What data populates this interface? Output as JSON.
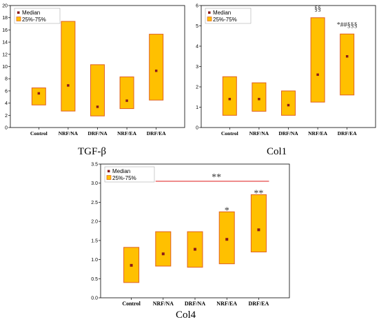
{
  "legend": {
    "median": "Median",
    "range": "25%-75%"
  },
  "colors": {
    "box_fill": "#ffc000",
    "box_stroke": "#e06020",
    "median": "#8b1a1a",
    "line": "#e03030"
  },
  "chart_data": [
    {
      "type": "box",
      "title": "TGF-β",
      "categories": [
        "Control",
        "NRF/NA",
        "DRF/NA",
        "NRF/EA",
        "DRF/EA"
      ],
      "ylim": [
        0,
        20
      ],
      "yticks": [
        0,
        2,
        4,
        6,
        8,
        10,
        12,
        14,
        16,
        18,
        20
      ],
      "legend_position": "top-left",
      "series": [
        {
          "name": "Median",
          "values": [
            5.6,
            6.9,
            3.4,
            4.4,
            9.3
          ]
        },
        {
          "name": "25%-75%",
          "q1": [
            3.7,
            2.7,
            1.9,
            3.1,
            4.5
          ],
          "q3": [
            6.5,
            17.4,
            10.3,
            8.3,
            15.3
          ]
        }
      ],
      "annotations": []
    },
    {
      "type": "box",
      "title": "Col1",
      "categories": [
        "Control",
        "NRF/NA",
        "DRF/NA",
        "NRF/EA",
        "DRF/EA"
      ],
      "ylim": [
        0,
        6
      ],
      "yticks": [
        0,
        1,
        2,
        3,
        4,
        5,
        6
      ],
      "legend_position": "top-left",
      "series": [
        {
          "name": "Median",
          "values": [
            1.4,
            1.4,
            1.1,
            2.6,
            3.5
          ]
        },
        {
          "name": "25%-75%",
          "q1": [
            0.6,
            0.8,
            0.6,
            1.25,
            1.6
          ],
          "q3": [
            2.5,
            2.2,
            1.8,
            5.4,
            4.6
          ]
        }
      ],
      "annotations": [
        {
          "category": "NRF/EA",
          "text": "§§",
          "y": 5.75
        },
        {
          "category": "DRF/EA",
          "text": "*##§§§",
          "y": 4.95
        }
      ]
    },
    {
      "type": "box",
      "title": "Col4",
      "categories": [
        "Control",
        "NRF/NA",
        "DRF/NA",
        "NRF/EA",
        "DRF/EA"
      ],
      "ylim": [
        0,
        3.5
      ],
      "yticks": [
        0.0,
        0.5,
        1.0,
        1.5,
        2.0,
        2.5,
        3.0,
        3.5
      ],
      "legend_position": "top-left",
      "series": [
        {
          "name": "Median",
          "values": [
            0.85,
            1.15,
            1.27,
            1.53,
            1.78
          ]
        },
        {
          "name": "25%-75%",
          "q1": [
            0.4,
            0.83,
            0.8,
            0.89,
            1.2
          ],
          "q3": [
            1.32,
            1.73,
            1.73,
            2.25,
            2.7
          ]
        }
      ],
      "annotations": [
        {
          "category": "NRF/EA",
          "text": "*",
          "y": 2.32
        },
        {
          "category": "DRF/EA",
          "text": "**",
          "y": 2.77
        }
      ],
      "significance_bar": {
        "y": 3.05,
        "from": "NRF/NA",
        "to": "DRF/EA",
        "text": "**"
      }
    }
  ]
}
